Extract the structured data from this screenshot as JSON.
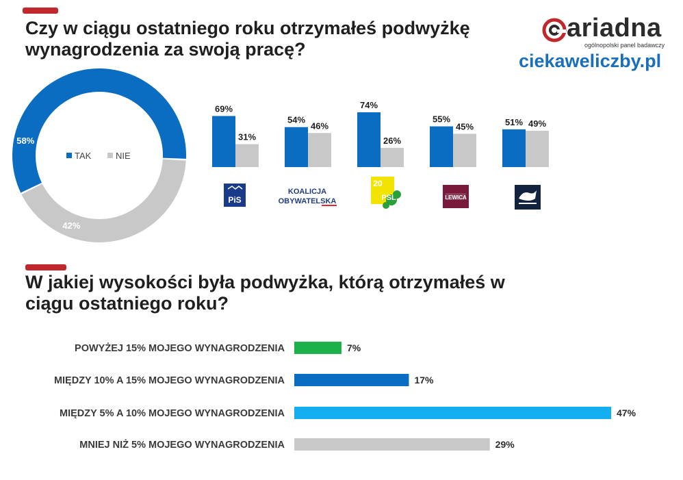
{
  "header": {
    "title": "Czy w ciągu ostatniego roku otrzymałeś podwyżkę wynagrodzenia  za swoją pracę?",
    "title_lines": [
      "Czy w ciągu ostatniego roku otrzymałeś podwyżkę",
      "wynagrodzenia  za swoją pracę?"
    ]
  },
  "brand": {
    "name": "ariadna",
    "tagline": "ogólnopolski panel badawczy",
    "site": "ciekaweliczby.pl",
    "logo_icon": "ariadna-logo-icon",
    "site_color": "#1a6fbd"
  },
  "section2": {
    "title_lines": [
      "W jakiej wysokości była podwyżka, którą otrzymałeś w",
      "ciągu ostatniego roku?"
    ]
  },
  "colors": {
    "accent": "#c0282d",
    "tak": "#0a6dc2",
    "nie": "#c8c8c8",
    "green": "#1db14c",
    "dark_blue": "#0a6dc2",
    "light_blue": "#13aef0",
    "gray": "#c8c8c8"
  },
  "chart_data": [
    {
      "type": "pie",
      "variant": "donut",
      "labels": [
        "TAK",
        "NIE"
      ],
      "values": [
        58,
        42
      ],
      "value_labels": [
        "58%",
        "42%"
      ],
      "colors": [
        "#0a6dc2",
        "#c8c8c8"
      ],
      "legend": {
        "placement": "center",
        "entries": [
          "TAK",
          "NIE"
        ]
      }
    },
    {
      "type": "bar",
      "categories": [
        "PiS",
        "KOALICJA OBYWATELSKA",
        "PSL",
        "LEWICA",
        "KONFEDERACJA"
      ],
      "category_logos": [
        {
          "name": "pis-logo",
          "text_lines": [
            "PiS"
          ]
        },
        {
          "name": "koalicja-obywatelska-logo",
          "text_lines": [
            "KOALICJA",
            "OBYWATELSKA"
          ]
        },
        {
          "name": "psl-logo",
          "text_lines": [
            "20",
            "PSL"
          ]
        },
        {
          "name": "lewica-logo",
          "text_lines": [
            "LEWICA"
          ]
        },
        {
          "name": "konfederacja-logo",
          "text_lines": []
        }
      ],
      "series": [
        {
          "name": "TAK",
          "values": [
            69,
            54,
            74,
            55,
            51
          ],
          "labels": [
            "69%",
            "54%",
            "74%",
            "55%",
            "51%"
          ],
          "color": "#0a6dc2"
        },
        {
          "name": "NIE",
          "values": [
            31,
            46,
            26,
            45,
            49
          ],
          "labels": [
            "31%",
            "46%",
            "26%",
            "45%",
            "49%"
          ],
          "color": "#c8c8c8"
        }
      ],
      "ylim": [
        0,
        100
      ],
      "grid": false
    },
    {
      "type": "bar",
      "orientation": "horizontal",
      "categories": [
        "POWYŻEJ 15% MOJEGO WYNAGRODZENIA",
        "MIĘDZY 10% A 15% MOJEGO WYNAGRODZENIA",
        "MIĘDZY 5% A 10% MOJEGO WYNAGRODZENIA",
        "MNIEJ NIŻ 5% MOJEGO WYNAGRODZENIA"
      ],
      "values": [
        7,
        17,
        47,
        29
      ],
      "value_labels": [
        "7%",
        "17%",
        "47%",
        "29%"
      ],
      "colors": [
        "#1db14c",
        "#0a6dc2",
        "#13aef0",
        "#c8c8c8"
      ],
      "xlim": [
        0,
        47
      ],
      "grid": false
    }
  ]
}
